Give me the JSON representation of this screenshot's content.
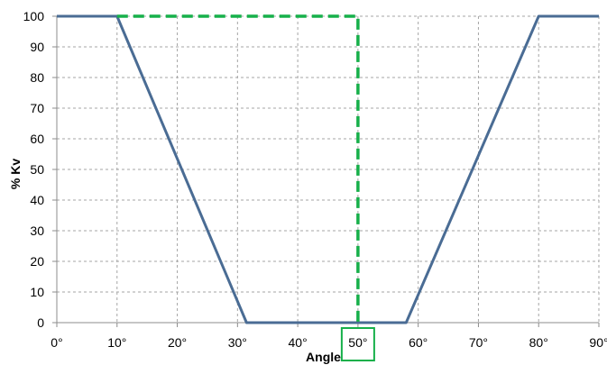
{
  "chart_data": {
    "type": "line",
    "title": "",
    "xlabel": "Angle",
    "ylabel": "% Kv",
    "xlim": [
      0,
      90
    ],
    "ylim": [
      0,
      100
    ],
    "x_ticks": [
      "0°",
      "10°",
      "20°",
      "30°",
      "40°",
      "50°",
      "60°",
      "70°",
      "80°",
      "90°"
    ],
    "y_ticks": [
      "0",
      "10",
      "20",
      "30",
      "40",
      "50",
      "60",
      "70",
      "80",
      "90",
      "100"
    ],
    "grid": true,
    "series": [
      {
        "color": "#4a6c94",
        "style": "solid",
        "x": [
          0,
          10,
          31.5,
          58,
          80,
          90
        ],
        "y": [
          100,
          100,
          0,
          0,
          100,
          100
        ]
      },
      {
        "color": "#16b04a",
        "style": "dashed",
        "x": [
          10,
          50,
          50
        ],
        "y": [
          100,
          100,
          0
        ]
      }
    ],
    "annotations": [
      {
        "type": "highlight-box",
        "target_tick": "50°",
        "color": "#16b04a"
      }
    ]
  }
}
